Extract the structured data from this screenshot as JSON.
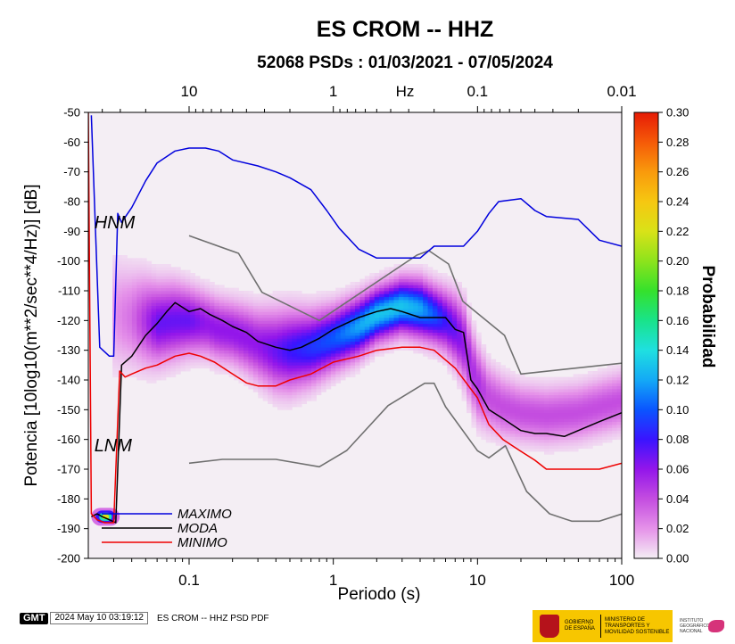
{
  "chart_data": {
    "type": "heatmap",
    "title": "ES CROM -- HHZ",
    "subtitle": "52068 PSDs : 01/03/2021 - 07/05/2024",
    "xlabel": "Periodo (s)",
    "ylabel": "Potencia [10log10(m**2/sec**4/Hz)] [dB]",
    "x_scale": "log",
    "xlim": [
      0.02,
      100
    ],
    "ylim": [
      -200,
      -50
    ],
    "x_ticks": [
      0.1,
      1,
      10,
      100
    ],
    "x_tick_labels": [
      "0.1",
      "1",
      "10",
      "100"
    ],
    "y_ticks": [
      -200,
      -190,
      -180,
      -170,
      -160,
      -150,
      -140,
      -130,
      -120,
      -110,
      -100,
      -90,
      -80,
      -70,
      -60,
      -50
    ],
    "y_tick_labels": [
      "-200",
      "-190",
      "-180",
      "-170",
      "-160",
      "-150",
      "-140",
      "-130",
      "-120",
      "-110",
      "-100",
      "-90",
      "-80",
      "-70",
      "-60",
      "-50"
    ],
    "top_axis": {
      "label": "Hz",
      "ticks": [
        10,
        1,
        0.1,
        0.01
      ],
      "tick_labels": [
        "10",
        "1",
        "0.1",
        "0.01"
      ]
    },
    "colorbar": {
      "label": "Probabilidad",
      "range": [
        0,
        0.3
      ],
      "ticks": [
        0.0,
        0.02,
        0.04,
        0.06,
        0.08,
        0.1,
        0.12,
        0.14,
        0.16,
        0.18,
        0.2,
        0.22,
        0.24,
        0.26,
        0.28,
        0.3
      ],
      "tick_labels": [
        "0.00",
        "0.02",
        "0.04",
        "0.06",
        "0.08",
        "0.10",
        "0.12",
        "0.14",
        "0.16",
        "0.18",
        "0.20",
        "0.22",
        "0.24",
        "0.26",
        "0.28",
        "0.30"
      ],
      "colors": [
        "#f4eef4",
        "#e592e9",
        "#c44de0",
        "#9316ea",
        "#3a14ff",
        "#0a55ff",
        "#14a9f6",
        "#1fe0e0",
        "#19e38a",
        "#35e12c",
        "#8de31c",
        "#d9e218",
        "#f6c711",
        "#f99a0c",
        "#f55a08",
        "#e61b06"
      ]
    },
    "series": [
      {
        "name": "MAXIMO",
        "color": "#0000dd",
        "x": [
          0.021,
          0.024,
          0.028,
          0.03,
          0.032,
          0.034,
          0.04,
          0.05,
          0.06,
          0.08,
          0.1,
          0.13,
          0.16,
          0.2,
          0.3,
          0.4,
          0.5,
          0.7,
          0.9,
          1.1,
          1.5,
          2,
          3,
          4,
          5,
          8,
          10,
          12,
          14,
          20,
          25,
          30,
          50,
          70,
          100
        ],
        "y": [
          -51,
          -129,
          -132,
          -132,
          -84,
          -87,
          -82,
          -73,
          -67,
          -63,
          -62,
          -62,
          -63,
          -66,
          -68,
          -70,
          -72,
          -76,
          -83,
          -89,
          -96,
          -99,
          -99,
          -99,
          -95,
          -95,
          -90,
          -84,
          -80,
          -79,
          -83,
          -85,
          -86,
          -93,
          -95
        ]
      },
      {
        "name": "MODA",
        "color": "#000000",
        "x": [
          0.021,
          0.023,
          0.025,
          0.028,
          0.031,
          0.034,
          0.04,
          0.05,
          0.06,
          0.07,
          0.08,
          0.1,
          0.12,
          0.14,
          0.17,
          0.2,
          0.25,
          0.3,
          0.4,
          0.5,
          0.6,
          0.8,
          1,
          1.5,
          2,
          2.5,
          3,
          4,
          5,
          6,
          7,
          8,
          9,
          10,
          12,
          15,
          20,
          25,
          30,
          40,
          50,
          70,
          100
        ],
        "y": [
          -186,
          -185,
          -186,
          -187,
          -188,
          -135,
          -132,
          -125,
          -121,
          -117,
          -114,
          -117,
          -116,
          -118,
          -120,
          -122,
          -124,
          -127,
          -129,
          -130,
          -129,
          -126,
          -123,
          -119,
          -117,
          -116,
          -117,
          -119,
          -119,
          -119,
          -123,
          -124,
          -140,
          -143,
          -150,
          -153,
          -157,
          -158,
          -158,
          -159,
          -157,
          -154,
          -151
        ]
      },
      {
        "name": "MINIMO",
        "color": "#ee0000",
        "x": [
          0.02,
          0.021,
          0.023,
          0.026,
          0.03,
          0.033,
          0.036,
          0.04,
          0.05,
          0.06,
          0.08,
          0.1,
          0.12,
          0.15,
          0.2,
          0.25,
          0.3,
          0.4,
          0.5,
          0.7,
          1,
          1.5,
          2,
          3,
          4,
          5,
          7,
          10,
          12,
          15,
          20,
          25,
          30,
          40,
          50,
          70,
          100
        ],
        "y": [
          -50,
          -185,
          -187,
          -188,
          -188,
          -137,
          -139,
          -138,
          -136,
          -135,
          -132,
          -131,
          -132,
          -134,
          -138,
          -141,
          -142,
          -142,
          -140,
          -138,
          -134,
          -132,
          -130,
          -129,
          -129,
          -130,
          -136,
          -146,
          -155,
          -160,
          -164,
          -167,
          -170,
          -170,
          -170,
          -170,
          -168
        ]
      },
      {
        "name": "HNM",
        "color": "#707070",
        "x": [
          0.1,
          0.22,
          0.32,
          0.8,
          3.8,
          4.6,
          6.3,
          7.9,
          15.4,
          20,
          354.8
        ],
        "y": [
          -91.5,
          -97.4,
          -110.5,
          -120,
          -98,
          -96.5,
          -101,
          -113.5,
          -125,
          -138,
          -131.5
        ]
      },
      {
        "name": "LNM",
        "color": "#707070",
        "x": [
          0.1,
          0.17,
          0.4,
          0.8,
          1.24,
          2.4,
          4.3,
          5,
          6,
          10,
          12,
          15.6,
          21.9,
          31.6,
          45,
          70,
          101,
          154
        ],
        "y": [
          -168,
          -166.7,
          -166.7,
          -169.2,
          -163.7,
          -148.6,
          -141.1,
          -141.1,
          -149,
          -163.8,
          -166.2,
          -162.1,
          -177.5,
          -185,
          -187.5,
          -187.5,
          -185,
          -187.5
        ]
      }
    ],
    "density_ridge": {
      "x": [
        0.03,
        0.04,
        0.05,
        0.06,
        0.08,
        0.1,
        0.13,
        0.16,
        0.2,
        0.25,
        0.3,
        0.4,
        0.5,
        0.7,
        1,
        1.5,
        2,
        3,
        4,
        5,
        6,
        7,
        8,
        9,
        10,
        12,
        15,
        20,
        30,
        50,
        100
      ],
      "y": [
        -118,
        -119,
        -120,
        -121,
        -120,
        -120,
        -121,
        -123,
        -124,
        -126,
        -128,
        -130,
        -130,
        -129,
        -126,
        -122,
        -118,
        -115,
        -116,
        -118,
        -120,
        -123,
        -127,
        -135,
        -141,
        -146,
        -149,
        -151,
        -152,
        -151,
        -147
      ],
      "half_width": [
        25,
        22,
        20,
        18,
        17,
        15,
        14,
        14,
        14,
        15,
        16,
        18,
        18,
        16,
        14,
        13,
        12,
        12,
        13,
        13,
        14,
        16,
        18,
        18,
        17,
        15,
        14,
        13,
        13,
        13,
        13
      ],
      "peak": [
        0.02,
        0.03,
        0.05,
        0.07,
        0.07,
        0.07,
        0.06,
        0.06,
        0.06,
        0.06,
        0.06,
        0.07,
        0.08,
        0.09,
        0.1,
        0.12,
        0.13,
        0.13,
        0.12,
        0.1,
        0.08,
        0.07,
        0.06,
        0.05,
        0.05,
        0.04,
        0.04,
        0.04,
        0.04,
        0.04,
        0.04
      ]
    },
    "density_hotspot": {
      "x": [
        0.021,
        0.033
      ],
      "y": [
        -189,
        -183
      ],
      "peak": 0.22
    },
    "annotations": [
      {
        "text": "HNM",
        "x": 0.022,
        "y": -89
      },
      {
        "text": "LNM",
        "x": 0.022,
        "y": -164
      }
    ],
    "legend": {
      "placement": "bottom-left",
      "entries": [
        {
          "label": "MAXIMO",
          "color": "#0000dd"
        },
        {
          "label": "MODA",
          "color": "#000000"
        },
        {
          "label": "MINIMO",
          "color": "#ee0000"
        }
      ]
    },
    "grid": false
  },
  "footer": {
    "logo_text": "GMT",
    "timestamp": "2024 May 10 03:19:12",
    "caption": "ES CROM -- HHZ PSD PDF"
  },
  "sponsors": {
    "gobierno": "GOBIERNO DE ESPAÑA",
    "ministerio": "MINISTERIO DE TRANSPORTES Y MOVILIDAD SOSTENIBLE",
    "instituto": "INSTITUTO GEOGRÁFICO NACIONAL"
  }
}
